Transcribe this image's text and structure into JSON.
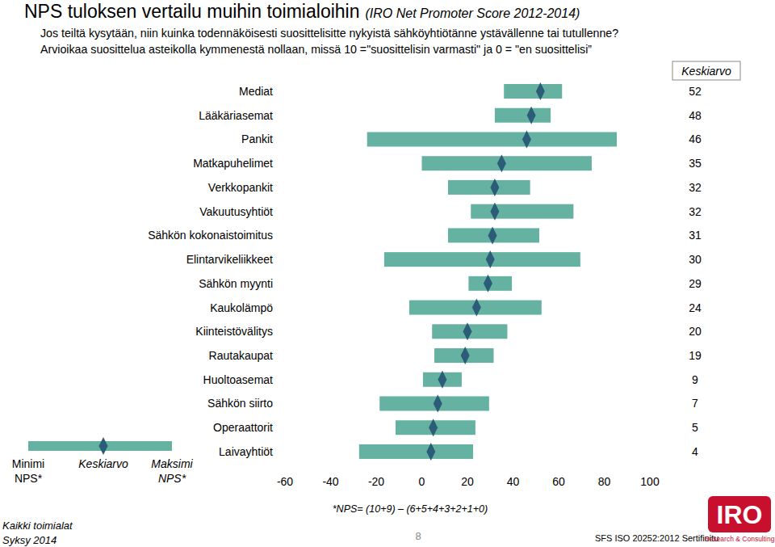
{
  "chart_data": {
    "type": "range_bar",
    "orientation": "horizontal",
    "title": "NPS tuloksen vertailu muihin toimialoihin",
    "subtitle": "(IRO Net Promoter Score 2012-2014)",
    "question": [
      "Jos teiltä kysytään, niin kuinka todennäköisesti suosittelisitte nykyistä sähköyhtiötänne ystävällenne tai tutullenne?",
      "Arvioikaa suosittelua asteikolla kymmenestä nollaan, missä 10 =\"suosittelisin varmasti\" ja 0 = \"en suosittelisi”"
    ],
    "categories": [
      "Mediat",
      "Lääkäriasemat",
      "Pankit",
      "Matkapuhelimet",
      "Verkkopankit",
      "Vakuutusyhtiöt",
      "Sähkön kokonaistoimitus",
      "Elintarvikeliikkeet",
      "Sähkön myynti",
      "Kaukolämpö",
      "Kiinteistövälitys",
      "Rautakaupat",
      "Huoltoasemat",
      "Sähkön siirto",
      "Operaattorit",
      "Laivayhtiöt"
    ],
    "series": [
      {
        "name": "Minimi NPS*",
        "color": "#66b2a2",
        "values": [
          36,
          32,
          -24,
          0,
          11.5,
          21.5,
          11.5,
          -16.5,
          20.5,
          -5.5,
          4.5,
          5.5,
          0.5,
          -18.5,
          -11.5,
          -27.5
        ]
      },
      {
        "name": "Maksimi NPS*",
        "color": "#66b2a2",
        "values": [
          61.5,
          56.5,
          85.5,
          74.5,
          47.5,
          66.5,
          51.5,
          69.5,
          39.5,
          52.5,
          37.5,
          31.5,
          17.5,
          29.5,
          23.5,
          22.5
        ]
      },
      {
        "name": "Keskiarvo",
        "color": "#2b5d78",
        "marker": "diamond",
        "data_labels": true,
        "values": [
          52,
          48,
          46,
          35,
          32,
          32,
          31,
          30,
          29,
          24,
          20,
          19,
          9,
          7,
          5,
          4
        ]
      }
    ],
    "xlim": [
      -60,
      100
    ],
    "xticks": [
      -60,
      -40,
      -20,
      0,
      20,
      40,
      60,
      80,
      100
    ],
    "grid": false,
    "footnote": "*NPS= (10+9) – (6+5+4+3+2+1+0)",
    "source_lines": [
      "Kaikki toimialat",
      "Syksy 2014"
    ],
    "page_number": "8",
    "certification": "SFS ISO 20252:2012 Sertifioitu",
    "logo": {
      "text": "IRO",
      "tagline": "Research & Consulting"
    }
  }
}
